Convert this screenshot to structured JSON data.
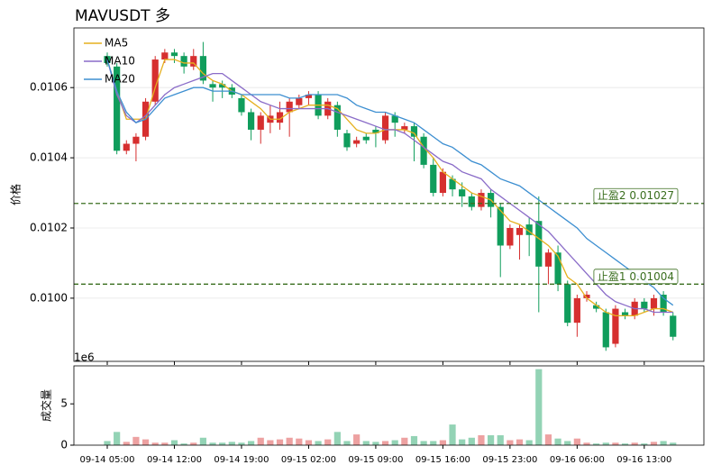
{
  "chart_data": {
    "type": "candlestick",
    "title": "MAVUSDT  多",
    "ylabel": "价格",
    "categories": [
      "09-14 05:00",
      null,
      null,
      null,
      null,
      null,
      null,
      "09-14 12:00",
      null,
      null,
      null,
      null,
      null,
      null,
      "09-14 19:00",
      null,
      null,
      null,
      null,
      null,
      null,
      "09-15 02:00",
      null,
      null,
      null,
      null,
      null,
      null,
      "09-15 09:00",
      null,
      null,
      null,
      null,
      null,
      null,
      "09-15 16:00",
      null,
      null,
      null,
      null,
      null,
      null,
      "09-15 23:00",
      null,
      null,
      null,
      null,
      null,
      null,
      "09-16 06:00",
      null,
      null,
      null,
      null,
      null,
      null,
      "09-16 13:00",
      null,
      null,
      null
    ],
    "open": [
      0.01069,
      0.01066,
      0.01042,
      0.01044,
      0.01046,
      0.01056,
      0.01068,
      0.0107,
      0.01069,
      0.01066,
      0.01069,
      0.01061,
      0.01061,
      0.0106,
      0.01057,
      0.01053,
      0.01048,
      0.0105,
      0.0105,
      0.01053,
      0.01055,
      0.01057,
      0.01058,
      0.01052,
      0.01055,
      0.01047,
      0.01044,
      0.01046,
      0.01048,
      0.01045,
      0.01052,
      0.01048,
      0.01049,
      0.01046,
      0.01038,
      0.0103,
      0.01034,
      0.01031,
      0.01029,
      0.01026,
      0.0103,
      0.01026,
      0.01015,
      0.01018,
      0.01021,
      0.01022,
      0.01009,
      0.01013,
      0.01004,
      0.00993,
      0.01,
      0.00998,
      0.00996,
      0.00987,
      0.00996,
      0.00995,
      0.00999,
      0.00997,
      0.01001,
      0.00995
    ],
    "high": [
      0.0107,
      0.01067,
      0.01045,
      0.01047,
      0.01057,
      0.01069,
      0.01071,
      0.01071,
      0.0107,
      0.01071,
      0.01073,
      0.01062,
      0.01062,
      0.01061,
      0.01058,
      0.01054,
      0.01053,
      0.01055,
      0.01056,
      0.01057,
      0.01058,
      0.01059,
      0.01059,
      0.01057,
      0.01056,
      0.01048,
      0.01046,
      0.01047,
      0.01049,
      0.01053,
      0.01053,
      0.0105,
      0.0105,
      0.01047,
      0.0104,
      0.01037,
      0.01035,
      0.01033,
      0.0103,
      0.01031,
      0.01031,
      0.01027,
      0.01021,
      0.01021,
      0.01023,
      0.01029,
      0.01014,
      0.01015,
      0.01005,
      0.01001,
      0.01002,
      0.00999,
      0.00997,
      0.00998,
      0.00997,
      0.01,
      0.01,
      0.01001,
      0.01002,
      0.00996
    ],
    "low": [
      0.01066,
      0.01041,
      0.01041,
      0.01039,
      0.01045,
      0.01055,
      0.01067,
      0.01067,
      0.01064,
      0.01065,
      0.01061,
      0.01056,
      0.01057,
      0.01057,
      0.01052,
      0.01045,
      0.01044,
      0.01047,
      0.01048,
      0.01046,
      0.01054,
      0.01055,
      0.01051,
      0.01051,
      0.01046,
      0.01042,
      0.01043,
      0.01044,
      0.01043,
      0.01044,
      0.01046,
      0.01047,
      0.01039,
      0.01037,
      0.01029,
      0.01029,
      0.01029,
      0.01026,
      0.01025,
      0.01025,
      0.01023,
      0.01006,
      0.01014,
      0.01011,
      0.01012,
      0.00996,
      0.01004,
      0.01002,
      0.00992,
      0.00989,
      0.00999,
      0.00996,
      0.00985,
      0.00986,
      0.00994,
      0.00994,
      0.00996,
      0.00995,
      0.00995,
      0.00988
    ],
    "close": [
      0.01067,
      0.01042,
      0.01044,
      0.01046,
      0.01056,
      0.01068,
      0.0107,
      0.01069,
      0.01066,
      0.01069,
      0.01062,
      0.0106,
      0.0106,
      0.01058,
      0.01053,
      0.01048,
      0.01052,
      0.01052,
      0.01053,
      0.01056,
      0.01057,
      0.01058,
      0.01052,
      0.01056,
      0.01048,
      0.01043,
      0.01045,
      0.01045,
      0.01047,
      0.01052,
      0.0105,
      0.01049,
      0.01046,
      0.01038,
      0.0103,
      0.01036,
      0.01031,
      0.01029,
      0.01026,
      0.0103,
      0.01026,
      0.01015,
      0.0102,
      0.0102,
      0.01018,
      0.01009,
      0.01013,
      0.01004,
      0.00993,
      0.01,
      0.01001,
      0.00997,
      0.00986,
      0.00997,
      0.00995,
      0.00999,
      0.00997,
      0.01,
      0.00996,
      0.00989
    ],
    "up_color": "#d62f2f",
    "down_color": "#109d5c",
    "series": [
      {
        "name": "MA5",
        "color": "#e6b01e",
        "values": [
          0.01068,
          0.01059,
          0.01051,
          0.01051,
          0.01051,
          0.0106,
          0.01068,
          0.01068,
          0.01067,
          0.01067,
          0.01064,
          0.01062,
          0.01061,
          0.01059,
          0.01058,
          0.01056,
          0.01054,
          0.01051,
          0.01051,
          0.01053,
          0.01054,
          0.01055,
          0.01055,
          0.01055,
          0.01054,
          0.01051,
          0.01048,
          0.01047,
          0.01047,
          0.01048,
          0.01048,
          0.01048,
          0.01047,
          0.01043,
          0.0104,
          0.01036,
          0.01034,
          0.01032,
          0.0103,
          0.01029,
          0.01028,
          0.01025,
          0.01022,
          0.01021,
          0.01019,
          0.01017,
          0.01015,
          0.01012,
          0.01006,
          0.01004,
          0.01,
          0.00998,
          0.00996,
          0.00995,
          0.00995,
          0.00995,
          0.00996,
          0.00997,
          0.00997,
          0.00996
        ]
      },
      {
        "name": "MA10",
        "color": "#8a6cc8",
        "values": [
          0.01068,
          0.01058,
          0.01052,
          0.0105,
          0.01052,
          0.01055,
          0.01058,
          0.0106,
          0.01061,
          0.01062,
          0.01063,
          0.01064,
          0.01064,
          0.01062,
          0.0106,
          0.01058,
          0.01056,
          0.01055,
          0.01054,
          0.01054,
          0.01054,
          0.01054,
          0.01054,
          0.01054,
          0.01053,
          0.01052,
          0.01051,
          0.0105,
          0.01049,
          0.01048,
          0.01048,
          0.01047,
          0.01045,
          0.01043,
          0.01041,
          0.01039,
          0.01038,
          0.01036,
          0.01035,
          0.01034,
          0.01031,
          0.01029,
          0.01027,
          0.01025,
          0.01023,
          0.01021,
          0.01019,
          0.01016,
          0.01013,
          0.0101,
          0.01007,
          0.01004,
          0.01001,
          0.00999,
          0.00998,
          0.00997,
          0.00997,
          0.00996,
          0.00996,
          0.00996
        ]
      },
      {
        "name": "MA20",
        "color": "#3d8fd1",
        "values": [
          0.01068,
          0.01059,
          0.01053,
          0.0105,
          0.01051,
          0.01054,
          0.01057,
          0.01058,
          0.01059,
          0.0106,
          0.0106,
          0.01059,
          0.01059,
          0.01059,
          0.01058,
          0.01058,
          0.01058,
          0.01058,
          0.01058,
          0.01057,
          0.01057,
          0.01058,
          0.01058,
          0.01058,
          0.01058,
          0.01057,
          0.01055,
          0.01054,
          0.01053,
          0.01053,
          0.01052,
          0.01051,
          0.0105,
          0.01048,
          0.01046,
          0.01044,
          0.01043,
          0.01041,
          0.01039,
          0.01038,
          0.01036,
          0.01034,
          0.01033,
          0.01032,
          0.0103,
          0.01028,
          0.01026,
          0.01024,
          0.01022,
          0.0102,
          0.01017,
          0.01015,
          0.01013,
          0.01011,
          0.01009,
          0.01007,
          0.01005,
          0.01003,
          0.01,
          0.00998
        ]
      }
    ],
    "legend": "upper left",
    "ylim": [
      0.00982,
      0.01077
    ],
    "yticks": [
      {
        "value": 0.01,
        "label": "0.0100"
      },
      0.0102,
      0.0104,
      0.0106
    ],
    "grid": true,
    "hlines": [
      {
        "value": 0.01027,
        "label": "止盈2 0.01027",
        "color": "#3a6e1e"
      },
      {
        "value": 0.01004,
        "label": "止盈1 0.01004",
        "color": "#3a6e1e"
      }
    ],
    "volume": {
      "ylabel": "成交量",
      "scale_label": "1e6",
      "values": [
        0.5,
        1.6,
        0.4,
        1.0,
        0.7,
        0.3,
        0.3,
        0.6,
        0.2,
        0.3,
        0.9,
        0.3,
        0.3,
        0.4,
        0.3,
        0.5,
        0.9,
        0.6,
        0.7,
        0.9,
        0.8,
        0.6,
        0.5,
        0.7,
        1.6,
        0.5,
        1.3,
        0.5,
        0.4,
        0.5,
        0.6,
        0.9,
        1.1,
        0.5,
        0.5,
        0.6,
        2.5,
        0.7,
        0.9,
        1.2,
        1.2,
        1.2,
        0.6,
        0.7,
        0.6,
        9.2,
        1.3,
        0.8,
        0.5,
        0.8,
        0.3,
        0.2,
        0.3,
        0.3,
        0.2,
        0.3,
        0.2,
        0.4,
        0.5,
        0.3
      ],
      "ylim": [
        0,
        9.6
      ],
      "yticks": [
        0,
        5
      ]
    }
  }
}
